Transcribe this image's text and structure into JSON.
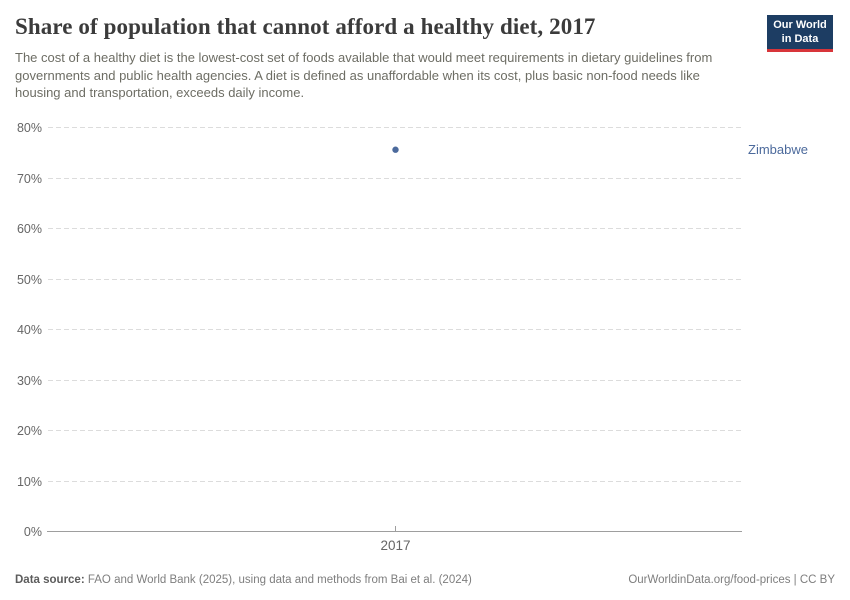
{
  "header": {
    "title": "Share of population that cannot afford a healthy diet, 2017",
    "subtitle": "The cost of a healthy diet is the lowest-cost set of foods available that would meet requirements in dietary guidelines from governments and public health agencies. A diet is defined as unaffordable when its cost, plus basic non-food needs like housing and transportation, exceeds daily income.",
    "logo": {
      "line1": "Our World",
      "line2": "in Data"
    }
  },
  "chart_data": {
    "type": "scatter",
    "title": "Share of population that cannot afford a healthy diet, 2017",
    "xlabel": "",
    "ylabel": "",
    "x": [
      2017
    ],
    "x_tick_labels": [
      "2017"
    ],
    "y_ticks": [
      0,
      10,
      20,
      30,
      40,
      50,
      60,
      70,
      80
    ],
    "y_tick_suffix": "%",
    "ylim": [
      0,
      80
    ],
    "grid": "horizontal-dashed",
    "legend_position": "label-right-of-plot",
    "series": [
      {
        "name": "Zimbabwe",
        "color": "#4c6a9c",
        "values": [
          75.5
        ]
      }
    ]
  },
  "footer": {
    "source_label": "Data source:",
    "source_text": " FAO and World Bank (2025), using data and methods from Bai et al. (2024)",
    "credit": "OurWorldinData.org/food-prices | CC BY"
  },
  "colors": {
    "gridline": "#dcdcdc",
    "axis": "#9e9e9e",
    "tick_label": "#666666",
    "point": "#4c6a9c"
  }
}
